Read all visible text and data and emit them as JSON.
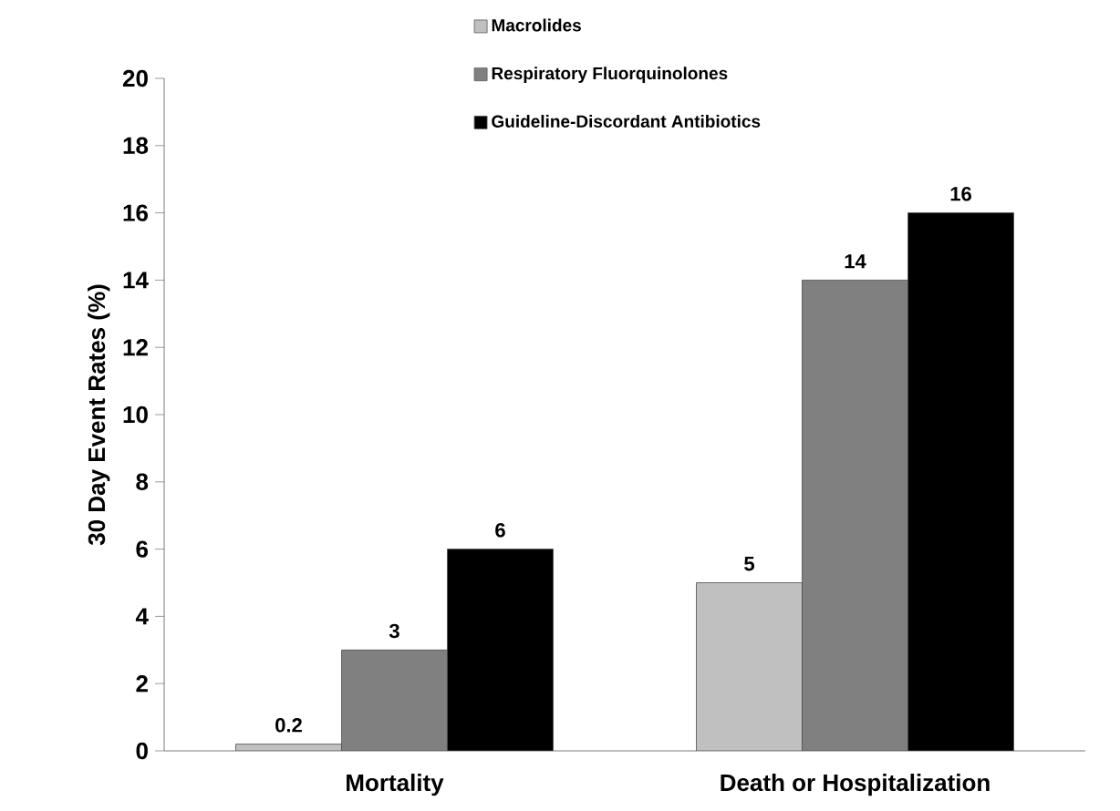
{
  "chart_data": {
    "type": "bar",
    "ylabel": "30 Day Event Rates (%)",
    "categories": [
      "Mortality",
      "Death or Hospitalization"
    ],
    "series": [
      {
        "name": "Macrolides",
        "color": "#c0c0c0",
        "values": [
          0.2,
          5
        ]
      },
      {
        "name": "Respiratory Fluorquinolones",
        "color": "#808080",
        "values": [
          3,
          14
        ]
      },
      {
        "name": "Guideline-Discordant Antibiotics",
        "color": "#000000",
        "values": [
          6,
          16
        ]
      }
    ],
    "ylim": [
      0,
      20
    ],
    "yticks": [
      0,
      2,
      4,
      6,
      8,
      10,
      12,
      14,
      16,
      18,
      20
    ],
    "data_labels": true,
    "legend": "top",
    "grid": false
  }
}
